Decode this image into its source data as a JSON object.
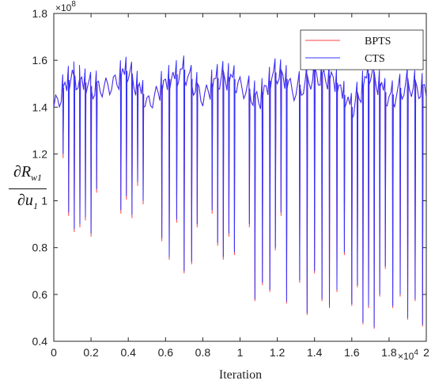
{
  "chart_data": {
    "type": "line",
    "xlabel": "Iteration",
    "x_multiplier": "×10",
    "x_multiplier_exp": "4",
    "y_multiplier": "×10",
    "y_multiplier_exp": "8",
    "ylabel": {
      "numerator": "∂R",
      "numerator_sub": "w1",
      "denominator": "∂u",
      "denominator_sub": "1"
    },
    "xlim": [
      0,
      2
    ],
    "ylim": [
      0.4,
      1.8
    ],
    "xticks": [
      "0",
      "0.2",
      "0.4",
      "0.6",
      "0.8",
      "1",
      "1.2",
      "1.4",
      "1.6",
      "1.8",
      "2"
    ],
    "yticks": [
      "0.4",
      "0.6",
      "0.8",
      "1",
      "1.2",
      "1.4",
      "1.6",
      "1.8"
    ],
    "grid": false,
    "legend_position": "top-right",
    "series": [
      {
        "name": "BPTS",
        "color": "#ff4040"
      },
      {
        "name": "CTS",
        "color": "#3333ff"
      }
    ],
    "envelope_upper": {
      "x": [
        0,
        0.1,
        0.2,
        0.3,
        0.4,
        0.5,
        0.6,
        0.7,
        0.8,
        0.9,
        1.0,
        1.1,
        1.2,
        1.3,
        1.4,
        1.5,
        1.6,
        1.7,
        1.8,
        1.9,
        2.0
      ],
      "y": [
        1.46,
        1.58,
        1.53,
        1.55,
        1.6,
        1.47,
        1.55,
        1.6,
        1.5,
        1.58,
        1.55,
        1.48,
        1.6,
        1.52,
        1.59,
        1.57,
        1.44,
        1.6,
        1.48,
        1.55,
        1.52
      ]
    },
    "dips": {
      "x": [
        0.05,
        0.08,
        0.11,
        0.14,
        0.17,
        0.2,
        0.23,
        0.36,
        0.39,
        0.42,
        0.45,
        0.48,
        0.58,
        0.62,
        0.66,
        0.7,
        0.74,
        0.77,
        0.85,
        0.88,
        0.91,
        0.94,
        0.97,
        1.05,
        1.08,
        1.12,
        1.16,
        1.19,
        1.22,
        1.25,
        1.32,
        1.36,
        1.4,
        1.44,
        1.48,
        1.52,
        1.56,
        1.6,
        1.63,
        1.66,
        1.69,
        1.72,
        1.75,
        1.78,
        1.82,
        1.86,
        1.9,
        1.94,
        1.98
      ],
      "y": [
        1.2,
        0.95,
        0.88,
        0.9,
        0.93,
        0.86,
        1.05,
        0.96,
        1.02,
        0.94,
        1.08,
        1.0,
        0.84,
        0.76,
        0.92,
        0.7,
        0.74,
        0.9,
        0.96,
        0.82,
        0.76,
        0.86,
        0.78,
        0.9,
        0.58,
        0.65,
        0.62,
        0.8,
        0.95,
        0.57,
        0.66,
        0.52,
        0.7,
        0.58,
        0.55,
        0.62,
        0.78,
        0.56,
        0.64,
        0.48,
        0.55,
        0.46,
        0.6,
        0.72,
        0.55,
        0.6,
        0.5,
        0.58,
        0.47
      ]
    }
  }
}
